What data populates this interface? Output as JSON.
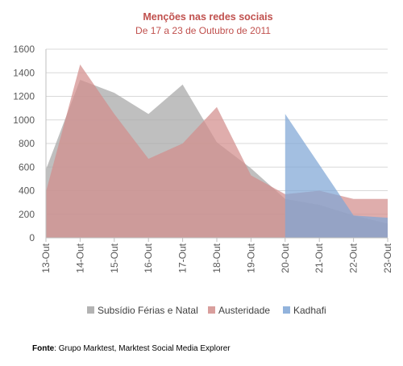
{
  "chart_data": {
    "type": "area",
    "title": "Menções nas redes sociais",
    "subtitle": "De 17 a 23 de Outubro de 2011",
    "categories": [
      "13-Out",
      "14-Out",
      "15-Out",
      "16-Out",
      "17-Out",
      "18-Out",
      "19-Out",
      "20-Out",
      "21-Out",
      "22-Out",
      "23-Out"
    ],
    "ylim": [
      0,
      1600
    ],
    "yticks": [
      0,
      200,
      400,
      600,
      800,
      1000,
      1200,
      1400,
      1600
    ],
    "grid": true,
    "legend_position": "bottom",
    "series": [
      {
        "name": "Subsídio Férias e Natal",
        "color": "#a6a6a6",
        "values": [
          580,
          1340,
          1230,
          1050,
          1300,
          810,
          590,
          330,
          280,
          190,
          120
        ]
      },
      {
        "name": "Austeridade",
        "color": "#d28e8c",
        "values": [
          390,
          1470,
          1050,
          670,
          800,
          1110,
          530,
          370,
          400,
          330,
          330
        ]
      },
      {
        "name": "Kadhafi",
        "color": "#7fa6d6",
        "values": [
          null,
          null,
          null,
          null,
          null,
          null,
          null,
          1050,
          620,
          190,
          170
        ]
      }
    ]
  },
  "source": {
    "label": "Fonte",
    "text": ": Grupo Marktest, Marktest Social Media Explorer"
  },
  "colors": {
    "title": "#c0504d",
    "grid": "#d9d9d9",
    "axis": "#bfbfbf"
  }
}
